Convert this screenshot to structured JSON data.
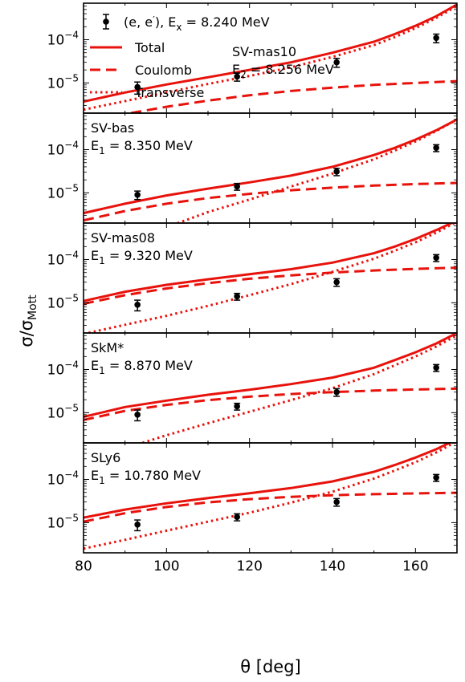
{
  "chart_data": {
    "type": "line",
    "xlabel": "θ [deg]",
    "ylabel": "σ/σ",
    "ylabel_sub": "Mott",
    "xlim": [
      80,
      170
    ],
    "xticks": [
      80,
      100,
      120,
      140,
      160
    ],
    "yscale": "log",
    "ylim": [
      2e-06,
      0.0007
    ],
    "yticks": [
      {
        "base": "10",
        "exp": "−5",
        "value": 1e-05
      },
      {
        "base": "10",
        "exp": "−4",
        "value": 0.0001
      }
    ],
    "colors": {
      "model": "#e8120c",
      "data": "#000000",
      "axes": "#000000"
    },
    "legend": {
      "position": "top-left",
      "data_entry": {
        "prefix": "(e, e",
        "prime": "′",
        "suffix": "), E",
        "sub": "x",
        "value": " = 8.240 MeV"
      },
      "total": "Total",
      "coulomb": "Coulomb",
      "transverse": "Transverse"
    },
    "panels": [
      {
        "model": "SV-mas10",
        "energy": {
          "symbol": "E",
          "sub": "2",
          "value": " = 8.256 MeV"
        },
        "label_position": "top-center",
        "total": {
          "x": [
            80,
            90,
            100,
            110,
            120,
            130,
            140,
            150,
            155,
            160,
            165,
            170
          ],
          "y": [
            3.7e-06,
            6e-06,
            9.2e-06,
            1.35e-05,
            2e-05,
            3e-05,
            5e-05,
            9e-05,
            0.000135,
            0.00021,
            0.00035,
            0.00065
          ]
        },
        "coulomb": {
          "x": [
            80,
            90,
            100,
            110,
            120,
            130,
            140,
            150,
            160,
            170
          ],
          "y": [
            1.3e-06,
            1.9e-06,
            2.8e-06,
            3.9e-06,
            5.2e-06,
            6.5e-06,
            7.8e-06,
            9e-06,
            1e-05,
            1.1e-05
          ]
        },
        "transverse": {
          "x": [
            80,
            90,
            100,
            110,
            120,
            130,
            140,
            150,
            155,
            160,
            165,
            170
          ],
          "y": [
            2.4e-06,
            3.8e-06,
            6e-06,
            9.5e-06,
            1.45e-05,
            2.3e-05,
            4e-05,
            7.5e-05,
            0.000115,
            0.000185,
            0.00032,
            0.0006
          ]
        },
        "data": {
          "x": [
            93,
            117,
            141,
            165
          ],
          "y": [
            8e-06,
            1.4e-05,
            3e-05,
            0.00011
          ],
          "err": [
            2.5e-06,
            3e-06,
            7e-06,
            2.5e-05
          ]
        }
      },
      {
        "model": "SV-bas",
        "energy": {
          "symbol": "E",
          "sub": "1",
          "value": " = 8.350 MeV"
        },
        "label_position": "top-left",
        "total": {
          "x": [
            80,
            90,
            100,
            110,
            120,
            130,
            140,
            150,
            155,
            160,
            165,
            170
          ],
          "y": [
            3.4e-06,
            5.6e-06,
            8.7e-06,
            1.25e-05,
            1.75e-05,
            2.5e-05,
            4e-05,
            7.5e-05,
            0.00011,
            0.00017,
            0.00028,
            0.0005
          ]
        },
        "coulomb": {
          "x": [
            80,
            90,
            100,
            110,
            120,
            130,
            140,
            150,
            160,
            170
          ],
          "y": [
            2.3e-06,
            3.8e-06,
            5.6e-06,
            7.6e-06,
            9.5e-06,
            1.15e-05,
            1.32e-05,
            1.47e-05,
            1.6e-05,
            1.7e-05
          ]
        },
        "transverse": {
          "x": [
            80,
            90,
            100,
            110,
            120,
            130,
            140,
            150,
            155,
            160,
            165,
            170
          ],
          "y": [
            1.8e-07,
            6.5e-07,
            1.6e-06,
            3.6e-06,
            7e-06,
            1.4e-05,
            2.8e-05,
            6e-05,
            9.5e-05,
            0.000155,
            0.00027,
            0.0005
          ]
        },
        "data": {
          "x": [
            93,
            117,
            141,
            165
          ],
          "y": [
            9e-06,
            1.4e-05,
            3.1e-05,
            0.00011
          ],
          "err": [
            2e-06,
            2.5e-06,
            6e-06,
            2e-05
          ]
        }
      },
      {
        "model": "SV-mas08",
        "energy": {
          "symbol": "E",
          "sub": "1",
          "value": " = 9.320 MeV"
        },
        "label_position": "top-left",
        "total": {
          "x": [
            80,
            90,
            100,
            110,
            120,
            130,
            140,
            150,
            155,
            160,
            165,
            170
          ],
          "y": [
            1.1e-05,
            1.8e-05,
            2.6e-05,
            3.5e-05,
            4.6e-05,
            6e-05,
            8.5e-05,
            0.00014,
            0.0002,
            0.0003,
            0.00048,
            0.0008
          ]
        },
        "coulomb": {
          "x": [
            80,
            90,
            100,
            110,
            120,
            130,
            140,
            150,
            160,
            170
          ],
          "y": [
            9.5e-06,
            1.5e-05,
            2.15e-05,
            2.85e-05,
            3.6e-05,
            4.3e-05,
            5e-05,
            5.6e-05,
            6.1e-05,
            6.5e-05
          ]
        },
        "transverse": {
          "x": [
            80,
            90,
            100,
            110,
            120,
            130,
            140,
            150,
            155,
            160,
            165,
            170
          ],
          "y": [
            1.9e-06,
            3.1e-06,
            5e-06,
            8.5e-06,
            1.5e-05,
            2.7e-05,
            5.2e-05,
            0.000105,
            0.00016,
            0.00025,
            0.00042,
            0.00075
          ]
        },
        "data": {
          "x": [
            93,
            117,
            141,
            165
          ],
          "y": [
            9e-06,
            1.4e-05,
            3e-05,
            0.00011
          ],
          "err": [
            2.5e-06,
            2.5e-06,
            6e-06,
            2e-05
          ]
        }
      },
      {
        "model": "SkM*",
        "energy": {
          "symbol": "E",
          "sub": "1",
          "value": " = 8.870 MeV"
        },
        "label_position": "top-left",
        "total": {
          "x": [
            80,
            90,
            100,
            110,
            120,
            130,
            140,
            150,
            155,
            160,
            165,
            170
          ],
          "y": [
            8e-06,
            1.35e-05,
            1.9e-05,
            2.6e-05,
            3.4e-05,
            4.6e-05,
            6.5e-05,
            0.00011,
            0.000165,
            0.00025,
            0.0004,
            0.0007
          ]
        },
        "coulomb": {
          "x": [
            80,
            90,
            100,
            110,
            120,
            130,
            140,
            150,
            160,
            170
          ],
          "y": [
            6.8e-06,
            1.1e-05,
            1.52e-05,
            1.95e-05,
            2.35e-05,
            2.7e-05,
            3e-05,
            3.25e-05,
            3.45e-05,
            3.6e-05
          ]
        },
        "transverse": {
          "x": [
            80,
            90,
            100,
            110,
            120,
            130,
            140,
            150,
            155,
            160,
            165,
            170
          ],
          "y": [
            6.5e-07,
            1.5e-06,
            3e-06,
            5.7e-06,
            1.05e-05,
            1.95e-05,
            3.7e-05,
            7.8e-05,
            0.000125,
            0.0002,
            0.00034,
            0.00062
          ]
        },
        "data": {
          "x": [
            93,
            117,
            141,
            165
          ],
          "y": [
            9e-06,
            1.4e-05,
            3e-05,
            0.00011
          ],
          "err": [
            2.5e-06,
            2.5e-06,
            6e-06,
            2e-05
          ]
        }
      },
      {
        "model": "SLy6",
        "energy": {
          "symbol": "E",
          "sub": "1",
          "value": " = 10.780 MeV"
        },
        "label_position": "top-left",
        "total": {
          "x": [
            80,
            90,
            100,
            110,
            120,
            130,
            140,
            150,
            155,
            160,
            165,
            170
          ],
          "y": [
            1.3e-05,
            2e-05,
            2.8e-05,
            3.7e-05,
            4.8e-05,
            6.3e-05,
            9e-05,
            0.00015,
            0.000215,
            0.00032,
            0.0005,
            0.00085
          ]
        },
        "coulomb": {
          "x": [
            80,
            90,
            100,
            110,
            120,
            130,
            140,
            150,
            160,
            170
          ],
          "y": [
            1.05e-05,
            1.65e-05,
            2.3e-05,
            2.95e-05,
            3.5e-05,
            3.95e-05,
            4.3e-05,
            4.55e-05,
            4.75e-05,
            4.9e-05
          ]
        },
        "transverse": {
          "x": [
            80,
            90,
            100,
            110,
            120,
            130,
            140,
            150,
            155,
            160,
            165,
            170
          ],
          "y": [
            2.5e-06,
            4e-06,
            6.5e-06,
            1.05e-05,
            1.7e-05,
            2.9e-05,
            5.2e-05,
            0.000105,
            0.00016,
            0.00025,
            0.00042,
            0.00076
          ]
        },
        "data": {
          "x": [
            93,
            117,
            141,
            165
          ],
          "y": [
            9e-06,
            1.35e-05,
            3e-05,
            0.00011
          ],
          "err": [
            2.5e-06,
            2.5e-06,
            6e-06,
            2e-05
          ]
        }
      }
    ]
  }
}
